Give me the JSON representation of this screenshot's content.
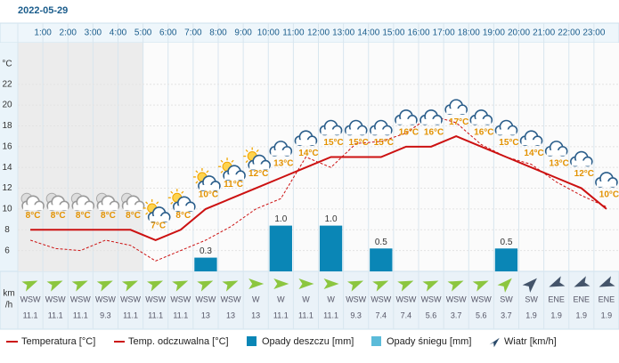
{
  "chart_data": {
    "type": "line",
    "date": "2022-05-29",
    "x_labels": [
      "1:00",
      "2:00",
      "3:00",
      "4:00",
      "5:00",
      "6:00",
      "7:00",
      "8:00",
      "9:00",
      "10:00",
      "11:00",
      "12:00",
      "13:00",
      "14:00",
      "15:00",
      "16:00",
      "17:00",
      "18:00",
      "19:00",
      "20:00",
      "21:00",
      "22:00",
      "23:00"
    ],
    "y_unit": "°C",
    "ylim": [
      4,
      26
    ],
    "yticks": [
      6,
      8,
      10,
      12,
      14,
      16,
      18,
      20,
      22
    ],
    "grid": true,
    "series": [
      {
        "name": "Temperatura [°C]",
        "color": "#cc1111",
        "dashed": false,
        "values": [
          8,
          8,
          8,
          8,
          8,
          7,
          8,
          10,
          11,
          12,
          13,
          14,
          15,
          15,
          15,
          16,
          16,
          17,
          16,
          15,
          14,
          13,
          12,
          10
        ],
        "value_labels": [
          "8°C",
          "8°C",
          "8°C",
          "8°C",
          "8°C",
          "7°C",
          "8°C",
          "10°C",
          "11°C",
          "12°C",
          "13°C",
          "14°C",
          "15°C",
          "15°C",
          "15°C",
          "16°C",
          "16°C",
          "17°C",
          "16°C",
          "15°C",
          "14°C",
          "13°C",
          "12°C",
          "10°C"
        ]
      },
      {
        "name": "Temp. odczuwalna [°C]",
        "color": "#cc1111",
        "dashed": true,
        "values": [
          7,
          6.2,
          6,
          7,
          6.5,
          5,
          6,
          7,
          8.3,
          10,
          11,
          15,
          14,
          16.3,
          16.5,
          17.3,
          19,
          18.3,
          16.2,
          15,
          14.3,
          12.6,
          11.3,
          10.2
        ]
      }
    ],
    "precip_ylim": [
      0,
      5
    ],
    "precip": [
      {
        "name": "Opady deszczu [mm]",
        "color": "#0a86b6",
        "values": [
          0,
          0,
          0,
          0,
          0,
          0,
          0,
          0.3,
          0,
          0,
          1.0,
          0,
          1.0,
          0,
          0.5,
          0,
          0,
          0,
          0,
          0.5,
          0,
          0,
          0,
          0
        ],
        "value_labels": [
          null,
          null,
          null,
          null,
          null,
          null,
          null,
          "0.3",
          null,
          null,
          "1.0",
          null,
          "1.0",
          null,
          "0.5",
          null,
          null,
          null,
          null,
          "0.5",
          null,
          null,
          null,
          null
        ]
      },
      {
        "name": "Opady śniegu [mm]",
        "color": "#5bbbd9",
        "values": [
          0,
          0,
          0,
          0,
          0,
          0,
          0,
          0,
          0,
          0,
          0,
          0,
          0,
          0,
          0,
          0,
          0,
          0,
          0,
          0,
          0,
          0,
          0,
          0
        ]
      }
    ],
    "wind": {
      "name": "Wiatr [km/h]",
      "unit": [
        "km",
        "/h"
      ],
      "directions": [
        "WSW",
        "WSW",
        "WSW",
        "WSW",
        "WSW",
        "WSW",
        "WSW",
        "WSW",
        "WSW",
        "W",
        "W",
        "W",
        "W",
        "WSW",
        "WSW",
        "WSW",
        "WSW",
        "WSW",
        "WSW",
        "SW",
        "SW",
        "ENE",
        "ENE",
        "ENE"
      ],
      "speeds": [
        11.1,
        11.1,
        11.1,
        9.3,
        11.1,
        11.1,
        11.1,
        13,
        13,
        13,
        11.1,
        11.1,
        11.1,
        9.3,
        7.4,
        7.4,
        5.6,
        3.7,
        5.6,
        3.7,
        1.9,
        1.9,
        1.9,
        1.9
      ]
    }
  }
}
